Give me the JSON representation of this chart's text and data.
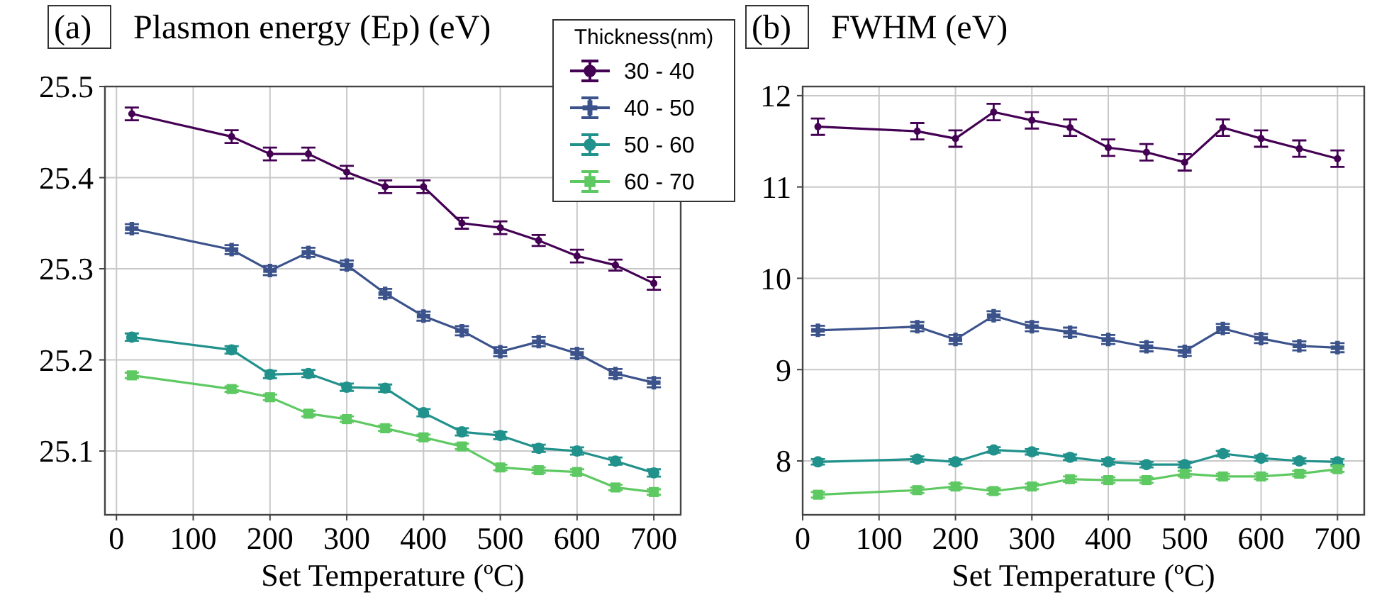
{
  "chart_data": [
    {
      "type": "line",
      "title": "(a) Plasmon energy (Ep) (eV)",
      "xlabel": "Set Temperature (ºC)",
      "legend_title": "Thickness(nm)",
      "legend": "top right",
      "grid": true,
      "xlim": [
        -15,
        735
      ],
      "xticks": [
        0,
        100,
        200,
        300,
        400,
        500,
        600,
        700
      ],
      "ylim": [
        25.03,
        25.5
      ],
      "yticks": [
        25.1,
        25.2,
        25.3,
        25.4,
        25.5
      ],
      "x": [
        20,
        150,
        200,
        250,
        300,
        350,
        400,
        450,
        500,
        550,
        600,
        650,
        700
      ],
      "series": [
        {
          "name": "30 - 40",
          "color": "#440154",
          "marker": "circle",
          "values": [
            25.47,
            25.445,
            25.426,
            25.426,
            25.406,
            25.39,
            25.39,
            25.35,
            25.345,
            25.331,
            25.314,
            25.304,
            25.284
          ],
          "errors": [
            0.007,
            0.007,
            0.007,
            0.007,
            0.007,
            0.007,
            0.007,
            0.006,
            0.007,
            0.006,
            0.007,
            0.006,
            0.007
          ]
        },
        {
          "name": "40 - 50",
          "color": "#3b528b",
          "marker": "cross",
          "values": [
            25.344,
            25.321,
            25.298,
            25.318,
            25.304,
            25.273,
            25.248,
            25.232,
            25.209,
            25.22,
            25.207,
            25.185,
            25.175
          ],
          "errors": [
            0.005,
            0.005,
            0.005,
            0.005,
            0.005,
            0.005,
            0.005,
            0.005,
            0.005,
            0.005,
            0.005,
            0.005,
            0.005
          ]
        },
        {
          "name": "50 - 60",
          "color": "#21918c",
          "marker": "circle",
          "values": [
            25.225,
            25.211,
            25.184,
            25.185,
            25.17,
            25.169,
            25.142,
            25.121,
            25.117,
            25.103,
            25.1,
            25.089,
            25.076
          ],
          "errors": [
            0.004,
            0.004,
            0.004,
            0.004,
            0.004,
            0.004,
            0.004,
            0.004,
            0.004,
            0.004,
            0.004,
            0.004,
            0.004
          ]
        },
        {
          "name": "60 - 70",
          "color": "#5ec962",
          "marker": "square",
          "values": [
            25.183,
            25.168,
            25.159,
            25.141,
            25.135,
            25.125,
            25.115,
            25.105,
            25.082,
            25.079,
            25.077,
            25.06,
            25.055
          ],
          "errors": [
            0.003,
            0.003,
            0.003,
            0.003,
            0.003,
            0.003,
            0.003,
            0.003,
            0.003,
            0.003,
            0.003,
            0.003,
            0.003
          ]
        }
      ]
    },
    {
      "type": "line",
      "title": "(b) FWHM (eV)",
      "xlabel": "Set Temperature (ºC)",
      "grid": true,
      "xlim": [
        0,
        735
      ],
      "xticks": [
        0,
        100,
        200,
        300,
        400,
        500,
        600,
        700
      ],
      "ylim": [
        7.41,
        12.1
      ],
      "yticks": [
        8,
        9,
        10,
        11,
        12
      ],
      "x": [
        20,
        150,
        200,
        250,
        300,
        350,
        400,
        450,
        500,
        550,
        600,
        650,
        700
      ],
      "series": [
        {
          "color": "#440154",
          "marker": "circle",
          "values": [
            11.66,
            11.61,
            11.53,
            11.82,
            11.73,
            11.65,
            11.43,
            11.38,
            11.27,
            11.65,
            11.53,
            11.42,
            11.31
          ],
          "errors": [
            0.09,
            0.09,
            0.09,
            0.09,
            0.09,
            0.09,
            0.09,
            0.09,
            0.09,
            0.09,
            0.09,
            0.09,
            0.09
          ]
        },
        {
          "color": "#3b528b",
          "marker": "cross",
          "values": [
            9.43,
            9.47,
            9.33,
            9.59,
            9.47,
            9.41,
            9.33,
            9.25,
            9.2,
            9.45,
            9.34,
            9.26,
            9.24
          ],
          "errors": [
            0.05,
            0.05,
            0.05,
            0.05,
            0.05,
            0.05,
            0.05,
            0.05,
            0.05,
            0.05,
            0.05,
            0.05,
            0.05
          ]
        },
        {
          "color": "#21918c",
          "marker": "circle",
          "values": [
            7.99,
            8.02,
            7.99,
            8.12,
            8.1,
            8.04,
            7.99,
            7.96,
            7.96,
            8.08,
            8.03,
            8.0,
            7.99
          ],
          "errors": [
            0.03,
            0.03,
            0.03,
            0.03,
            0.03,
            0.03,
            0.03,
            0.03,
            0.03,
            0.03,
            0.03,
            0.03,
            0.03
          ]
        },
        {
          "color": "#5ec962",
          "marker": "square",
          "values": [
            7.63,
            7.68,
            7.72,
            7.67,
            7.72,
            7.8,
            7.79,
            7.79,
            7.86,
            7.83,
            7.83,
            7.86,
            7.91
          ],
          "errors": [
            0.03,
            0.03,
            0.03,
            0.03,
            0.03,
            0.03,
            0.03,
            0.03,
            0.03,
            0.03,
            0.03,
            0.03,
            0.03
          ]
        }
      ]
    }
  ]
}
